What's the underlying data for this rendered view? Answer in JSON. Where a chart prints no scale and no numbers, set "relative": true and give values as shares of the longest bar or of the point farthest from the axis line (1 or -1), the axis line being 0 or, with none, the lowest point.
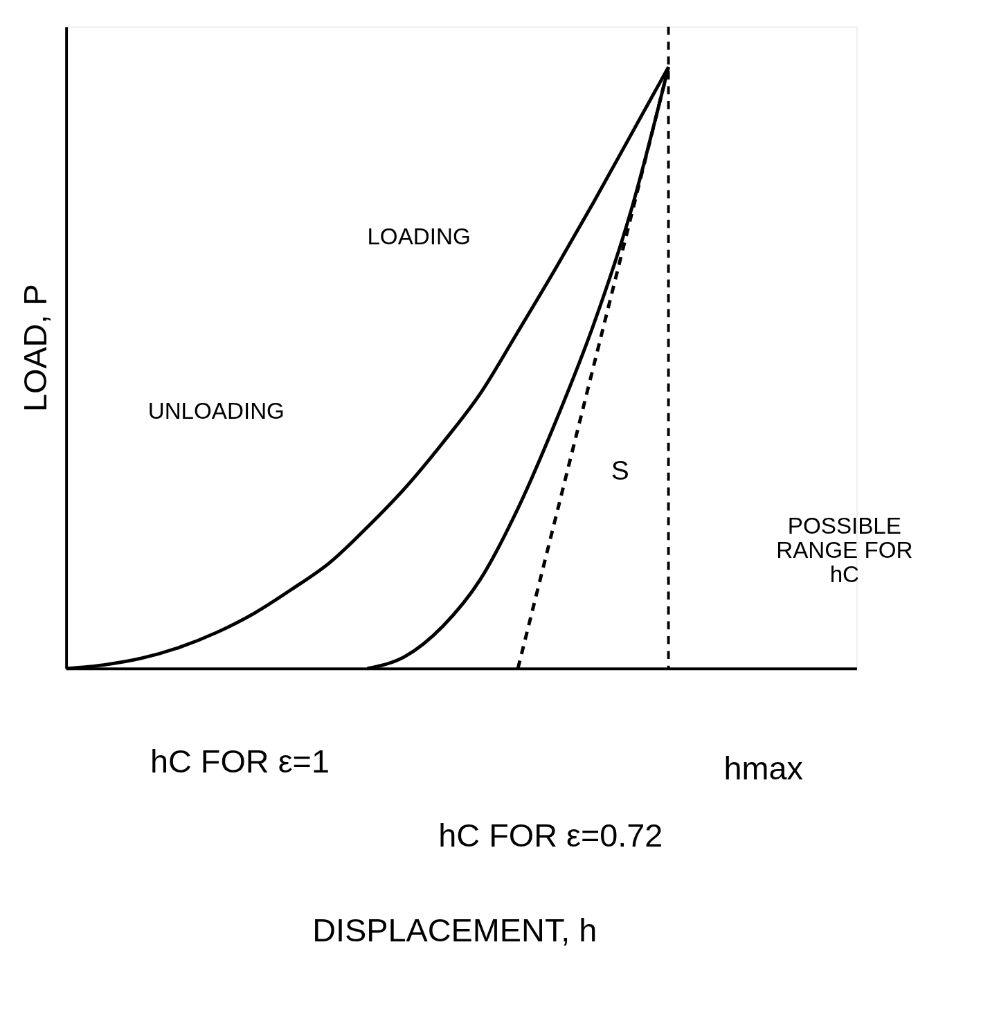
{
  "chart_data": {
    "type": "line",
    "relative": true,
    "ylabel": "LOAD, P",
    "categories": [
      null,
      null,
      null,
      null,
      null,
      null,
      null,
      null,
      null,
      null,
      null,
      null,
      null,
      null,
      null,
      null,
      null,
      null,
      null,
      null,
      null,
      null
    ],
    "series": [
      {
        "color": "#000000",
        "line_style": "solid",
        "values": [
          0,
          0.006,
          0.017,
          0.035,
          0.06,
          0.092,
          0.132,
          0.176,
          0.235,
          0.3,
          0.375,
          0.457,
          0.56,
          0.665,
          0.774,
          0.887,
          1,
          null,
          null,
          null,
          null,
          null
        ]
      },
      {
        "color": "#000000",
        "line_style": "solid",
        "values": [
          null,
          null,
          null,
          null,
          null,
          null,
          null,
          null,
          0,
          0.02,
          0.07,
          0.148,
          0.266,
          0.41,
          0.57,
          0.76,
          1,
          null,
          null,
          null,
          null,
          null
        ]
      },
      {
        "color": "#000000",
        "line_style": "dashed",
        "values": [
          null,
          null,
          null,
          null,
          null,
          null,
          null,
          null,
          null,
          null,
          null,
          null,
          0,
          0.25,
          0.5,
          0.75,
          1,
          null,
          null,
          null,
          null,
          null
        ]
      }
    ],
    "annotations": [
      "DISPLACEMENT, h",
      "LOADING",
      "UNLOADING",
      "S",
      "POSSIBLE\nRANGE FOR\nhC",
      "hC FOR ε=1",
      "hC FOR ε=0.72",
      "hmax"
    ]
  }
}
